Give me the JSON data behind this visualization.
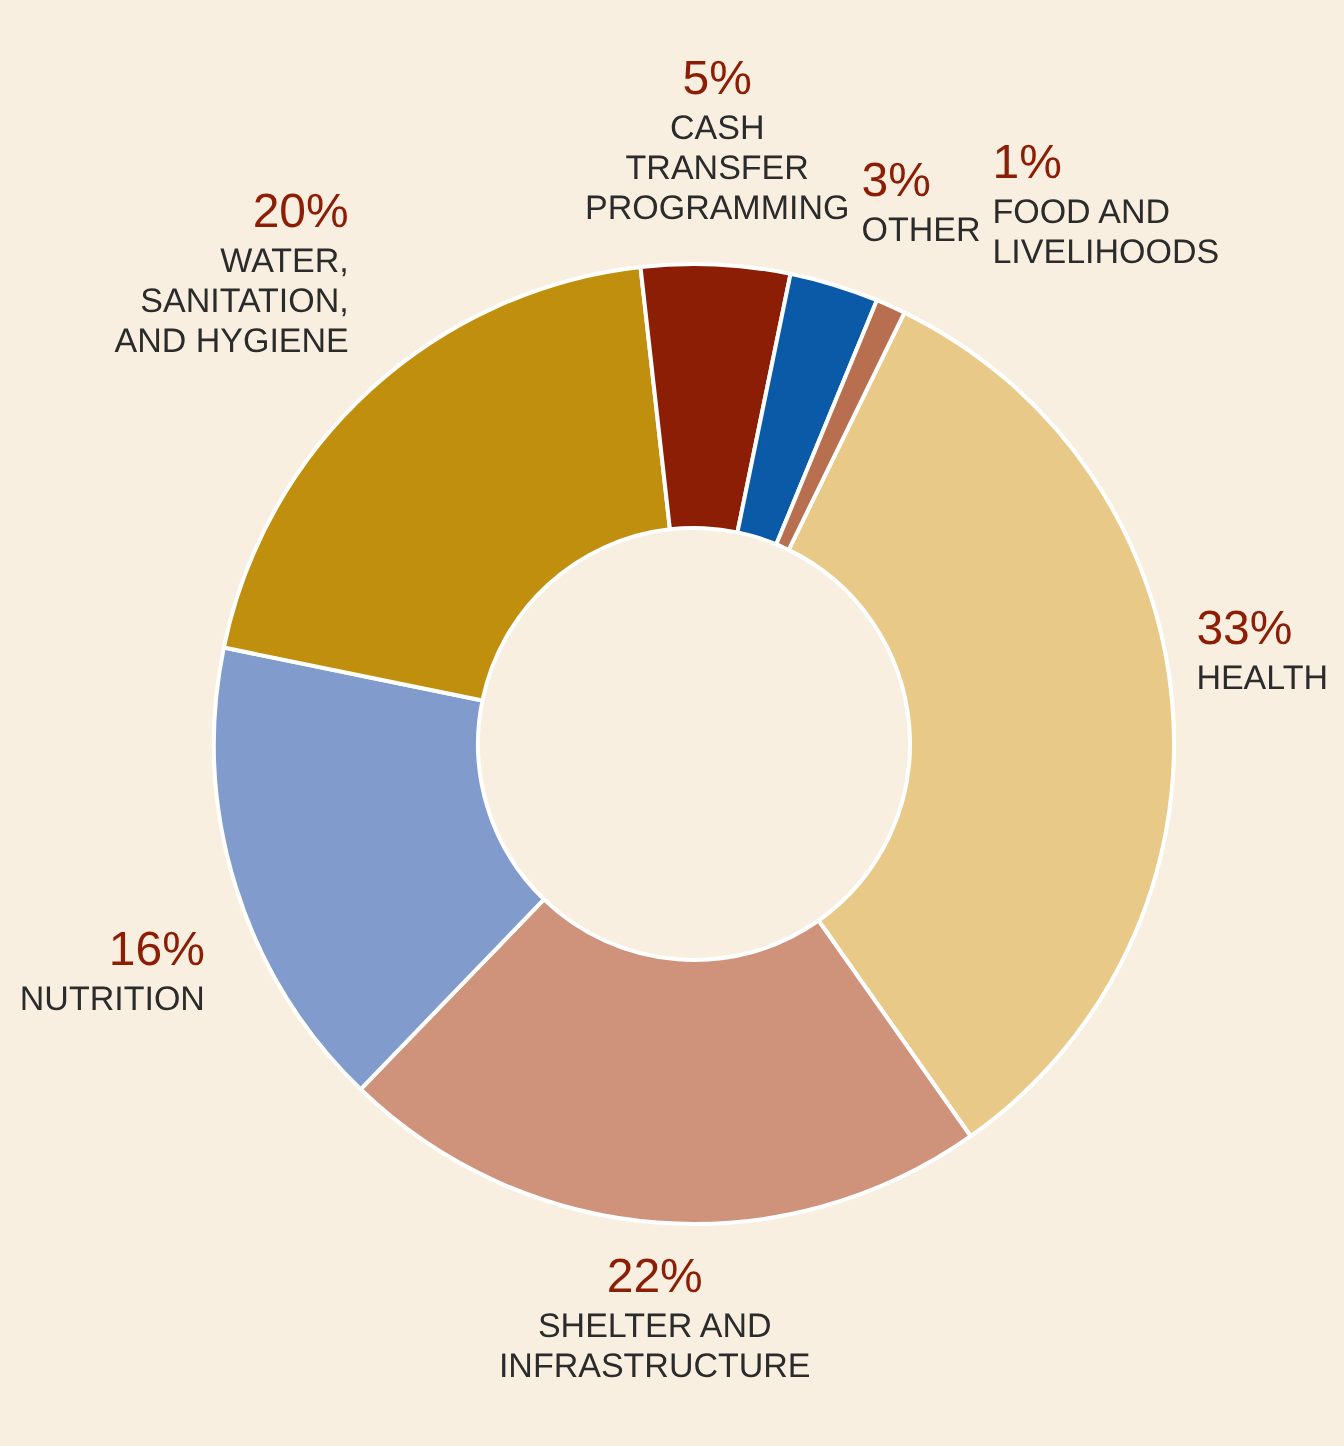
{
  "chart_data": {
    "type": "donut",
    "categories": [
      "HEALTH",
      "SHELTER AND INFRASTRUCTURE",
      "NUTRITION",
      "WATER, SANITATION, AND HYGIENE",
      "CASH TRANSFER PROGRAMMING",
      "OTHER",
      "FOOD AND LIVELIHOODS"
    ],
    "values": [
      33,
      22,
      16,
      20,
      5,
      3,
      1
    ],
    "value_labels": [
      "33%",
      "22%",
      "16%",
      "20%",
      "5%",
      "3%",
      "1%"
    ],
    "colors": [
      "#e9c987",
      "#cf937b",
      "#819bcc",
      "#c08f0e",
      "#8b1e05",
      "#0b5aa8",
      "#b86f4f"
    ],
    "legend": false
  }
}
